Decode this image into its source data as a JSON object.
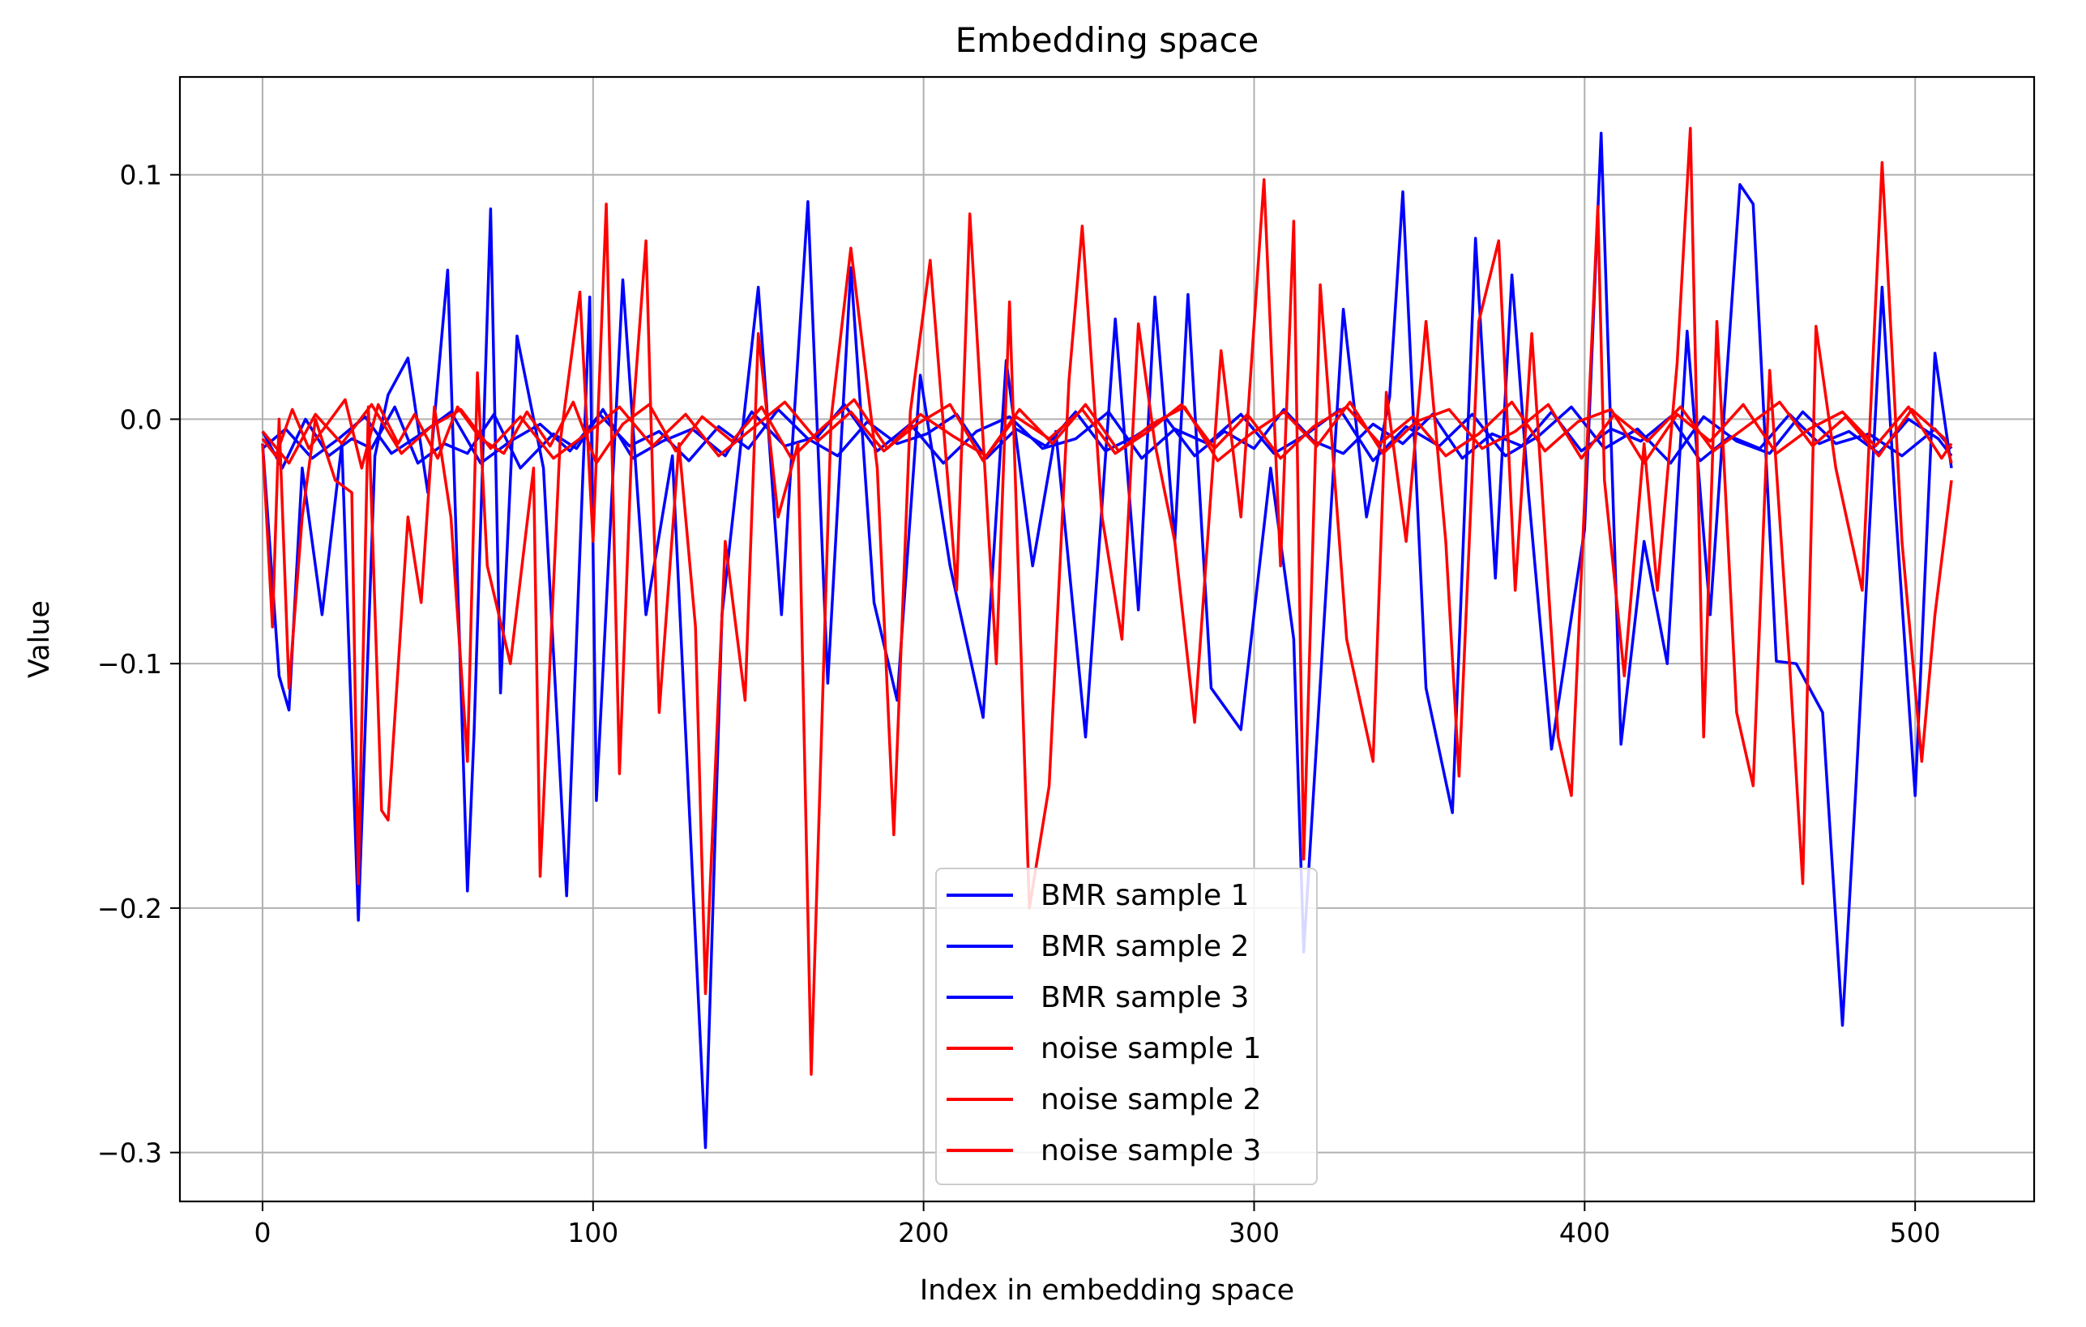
{
  "chart_data": {
    "type": "line",
    "title": "Embedding space",
    "xlabel": "Index in embedding space",
    "ylabel": "Value",
    "xlim": [
      -25,
      536
    ],
    "ylim": [
      -0.32,
      0.14
    ],
    "xticks": [
      0,
      100,
      200,
      300,
      400,
      500
    ],
    "xtick_labels": [
      "0",
      "100",
      "200",
      "300",
      "400",
      "500"
    ],
    "yticks": [
      0.1,
      0.0,
      -0.1,
      -0.2,
      -0.3
    ],
    "ytick_labels": [
      "0.1",
      "0.0",
      "−0.1",
      "−0.2",
      "−0.3"
    ],
    "grid": true,
    "legend_position": "lower-center",
    "series": [
      {
        "name": "BMR sample 1",
        "color": "#0000ff",
        "x": [
          0,
          5,
          8,
          12,
          18,
          24,
          29,
          34,
          38,
          44,
          50,
          56,
          62,
          64,
          69,
          72,
          77,
          85,
          92,
          99,
          101,
          109,
          116,
          124,
          134,
          139,
          150,
          157,
          165,
          171,
          178,
          185,
          192,
          199,
          208,
          218,
          225,
          233,
          240,
          249,
          258,
          265,
          270,
          276,
          280,
          287,
          296,
          305,
          312,
          315,
          327,
          334,
          341,
          345,
          352,
          360,
          367,
          373,
          378,
          383,
          390,
          400,
          405,
          411,
          418,
          425,
          431,
          438,
          447,
          451,
          458,
          464,
          472,
          478,
          482,
          490,
          494,
          500,
          506,
          511
        ],
        "y": [
          -0.01,
          -0.105,
          -0.119,
          -0.02,
          -0.08,
          -0.01,
          -0.205,
          -0.015,
          0.01,
          0.025,
          -0.03,
          0.061,
          -0.193,
          -0.128,
          0.086,
          -0.112,
          0.034,
          -0.02,
          -0.195,
          0.05,
          -0.156,
          0.057,
          -0.08,
          -0.015,
          -0.298,
          -0.08,
          0.054,
          -0.08,
          0.089,
          -0.108,
          0.062,
          -0.075,
          -0.115,
          0.018,
          -0.06,
          -0.122,
          0.024,
          -0.06,
          -0.005,
          -0.13,
          0.041,
          -0.078,
          0.05,
          -0.05,
          0.051,
          -0.11,
          -0.127,
          -0.02,
          -0.09,
          -0.218,
          0.045,
          -0.04,
          0.009,
          0.093,
          -0.11,
          -0.161,
          0.074,
          -0.065,
          0.059,
          -0.03,
          -0.135,
          -0.045,
          0.117,
          -0.133,
          -0.05,
          -0.1,
          0.036,
          -0.08,
          0.096,
          0.088,
          -0.099,
          -0.1,
          -0.12,
          -0.248,
          -0.152,
          0.054,
          -0.035,
          -0.154,
          0.027,
          -0.02
        ]
      },
      {
        "name": "BMR sample 2",
        "color": "#0000ff",
        "x": [
          0,
          6,
          13,
          20,
          27,
          33,
          40,
          47,
          55,
          62,
          70,
          78,
          88,
          95,
          103,
          112,
          121,
          130,
          140,
          148,
          158,
          168,
          176,
          186,
          196,
          206,
          216,
          226,
          236,
          246,
          256,
          266,
          276,
          286,
          296,
          306,
          316,
          326,
          336,
          346,
          356,
          366,
          376,
          386,
          396,
          406,
          416,
          426,
          436,
          446,
          456,
          466,
          476,
          486,
          496,
          506,
          511
        ],
        "y": [
          -0.005,
          -0.02,
          0.0,
          -0.015,
          -0.008,
          -0.012,
          0.005,
          -0.018,
          -0.01,
          -0.014,
          0.002,
          -0.02,
          -0.006,
          -0.012,
          0.004,
          -0.016,
          -0.009,
          -0.004,
          -0.015,
          0.003,
          -0.011,
          -0.007,
          0.006,
          -0.013,
          -0.002,
          -0.018,
          -0.005,
          0.001,
          -0.012,
          -0.008,
          0.003,
          -0.016,
          -0.004,
          -0.01,
          0.002,
          -0.014,
          -0.006,
          0.004,
          -0.017,
          -0.003,
          -0.011,
          0.002,
          -0.015,
          -0.007,
          0.005,
          -0.012,
          -0.004,
          -0.018,
          0.001,
          -0.009,
          -0.014,
          0.003,
          -0.01,
          -0.006,
          -0.015,
          -0.004,
          -0.012
        ]
      },
      {
        "name": "BMR sample 3",
        "color": "#0000ff",
        "x": [
          0,
          7,
          15,
          23,
          31,
          39,
          48,
          57,
          66,
          75,
          84,
          93,
          102,
          111,
          120,
          129,
          138,
          147,
          156,
          165,
          174,
          183,
          192,
          201,
          210,
          219,
          228,
          237,
          246,
          255,
          264,
          273,
          282,
          291,
          300,
          309,
          318,
          327,
          336,
          345,
          354,
          363,
          372,
          381,
          390,
          399,
          408,
          417,
          426,
          435,
          444,
          453,
          462,
          471,
          480,
          489,
          498,
          507,
          511
        ],
        "y": [
          -0.012,
          -0.004,
          -0.016,
          -0.008,
          0.001,
          -0.014,
          -0.006,
          0.003,
          -0.018,
          -0.009,
          -0.002,
          -0.013,
          0.002,
          -0.011,
          -0.005,
          -0.017,
          -0.003,
          -0.012,
          0.004,
          -0.008,
          -0.015,
          -0.001,
          -0.01,
          -0.006,
          0.002,
          -0.016,
          -0.004,
          -0.011,
          0.003,
          -0.013,
          -0.007,
          0.001,
          -0.015,
          -0.005,
          -0.012,
          0.004,
          -0.009,
          -0.014,
          -0.002,
          -0.01,
          0.002,
          -0.016,
          -0.006,
          -0.011,
          0.003,
          -0.013,
          -0.004,
          -0.009,
          0.001,
          -0.017,
          -0.007,
          -0.012,
          0.002,
          -0.01,
          -0.005,
          -0.014,
          0.0,
          -0.008,
          -0.015
        ]
      },
      {
        "name": "noise sample 1",
        "color": "#ff0000",
        "x": [
          0,
          3,
          5,
          8,
          12,
          16,
          22,
          27,
          29,
          32,
          36,
          38,
          44,
          48,
          52,
          57,
          62,
          65,
          68,
          75,
          82,
          84,
          90,
          96,
          100,
          104,
          108,
          112,
          116,
          120,
          126,
          131,
          134,
          140,
          146,
          150,
          156,
          162,
          166,
          172,
          178,
          186,
          191,
          196,
          202,
          210,
          214,
          222,
          226,
          232,
          238,
          244,
          248,
          254,
          260,
          265,
          270,
          276,
          282,
          290,
          296,
          303,
          308,
          312,
          315,
          320,
          328,
          336,
          340,
          346,
          352,
          358,
          362,
          368,
          374,
          379,
          384,
          392,
          396,
          404,
          406,
          412,
          418,
          422,
          428,
          432,
          436,
          440,
          446,
          451,
          456,
          462,
          466,
          470,
          476,
          484,
          490,
          496,
          502,
          506,
          511
        ],
        "y": [
          -0.01,
          -0.085,
          0.0,
          -0.11,
          -0.04,
          0.0,
          -0.025,
          -0.03,
          -0.19,
          0.005,
          -0.16,
          -0.164,
          -0.04,
          -0.075,
          0.005,
          -0.04,
          -0.14,
          0.019,
          -0.06,
          -0.1,
          -0.02,
          -0.187,
          -0.01,
          0.052,
          -0.05,
          0.088,
          -0.145,
          0.0,
          0.073,
          -0.12,
          -0.01,
          -0.085,
          -0.235,
          -0.05,
          -0.115,
          0.035,
          -0.04,
          -0.01,
          -0.268,
          0.0,
          0.07,
          -0.02,
          -0.17,
          0.003,
          0.065,
          -0.07,
          0.084,
          -0.1,
          0.048,
          -0.2,
          -0.15,
          0.016,
          0.079,
          -0.04,
          -0.09,
          0.039,
          -0.01,
          -0.05,
          -0.124,
          0.028,
          -0.04,
          0.098,
          -0.06,
          0.081,
          -0.18,
          0.055,
          -0.09,
          -0.14,
          0.011,
          -0.05,
          0.04,
          -0.05,
          -0.146,
          0.04,
          0.073,
          -0.07,
          0.035,
          -0.13,
          -0.154,
          0.087,
          -0.025,
          -0.105,
          -0.01,
          -0.07,
          0.023,
          0.119,
          -0.13,
          0.04,
          -0.12,
          -0.15,
          0.02,
          -0.1,
          -0.19,
          0.038,
          -0.02,
          -0.07,
          0.105,
          -0.05,
          -0.14,
          -0.08,
          -0.025
        ]
      },
      {
        "name": "noise sample 2",
        "color": "#ff0000",
        "x": [
          0,
          4,
          9,
          14,
          19,
          25,
          30,
          35,
          41,
          46,
          53,
          59,
          66,
          73,
          80,
          87,
          94,
          101,
          109,
          117,
          125,
          133,
          142,
          151,
          160,
          169,
          179,
          189,
          199,
          209,
          219,
          229,
          239,
          249,
          259,
          269,
          279,
          289,
          299,
          309,
          319,
          329,
          339,
          349,
          359,
          369,
          379,
          389,
          399,
          409,
          419,
          429,
          439,
          449,
          459,
          469,
          479,
          489,
          499,
          509,
          511
        ],
        "y": [
          -0.008,
          -0.015,
          0.004,
          -0.012,
          -0.003,
          0.008,
          -0.02,
          0.006,
          -0.01,
          0.002,
          -0.016,
          0.005,
          -0.008,
          -0.014,
          0.003,
          -0.011,
          0.007,
          -0.018,
          -0.002,
          0.006,
          -0.013,
          0.001,
          -0.009,
          0.005,
          -0.016,
          -0.004,
          0.008,
          -0.012,
          0.002,
          -0.007,
          -0.015,
          0.004,
          -0.01,
          0.006,
          -0.013,
          -0.002,
          0.005,
          -0.017,
          -0.006,
          0.003,
          -0.011,
          0.007,
          -0.014,
          -0.001,
          0.004,
          -0.012,
          -0.005,
          0.006,
          -0.016,
          0.002,
          -0.009,
          0.005,
          -0.013,
          -0.003,
          0.007,
          -0.011,
          0.001,
          -0.015,
          0.004,
          -0.008,
          -0.018
        ]
      },
      {
        "name": "noise sample 3",
        "color": "#ff0000",
        "x": [
          0,
          8,
          16,
          24,
          33,
          42,
          51,
          60,
          69,
          78,
          88,
          98,
          108,
          118,
          128,
          138,
          148,
          158,
          168,
          178,
          188,
          198,
          208,
          218,
          228,
          238,
          248,
          258,
          268,
          278,
          288,
          298,
          308,
          318,
          328,
          338,
          348,
          358,
          368,
          378,
          388,
          398,
          408,
          418,
          428,
          438,
          448,
          458,
          468,
          478,
          488,
          498,
          508,
          511
        ],
        "y": [
          -0.005,
          -0.018,
          0.002,
          -0.01,
          0.006,
          -0.014,
          -0.003,
          0.004,
          -0.012,
          0.001,
          -0.016,
          -0.006,
          0.005,
          -0.011,
          0.002,
          -0.015,
          -0.004,
          0.007,
          -0.009,
          0.003,
          -0.013,
          -0.002,
          0.006,
          -0.017,
          0.001,
          -0.008,
          0.004,
          -0.014,
          -0.005,
          0.006,
          -0.012,
          0.002,
          -0.016,
          -0.003,
          0.005,
          -0.01,
          0.001,
          -0.015,
          -0.006,
          0.007,
          -0.013,
          -0.001,
          0.004,
          -0.018,
          0.002,
          -0.009,
          0.006,
          -0.014,
          -0.004,
          0.003,
          -0.011,
          0.005,
          -0.016,
          -0.01
        ]
      }
    ]
  }
}
